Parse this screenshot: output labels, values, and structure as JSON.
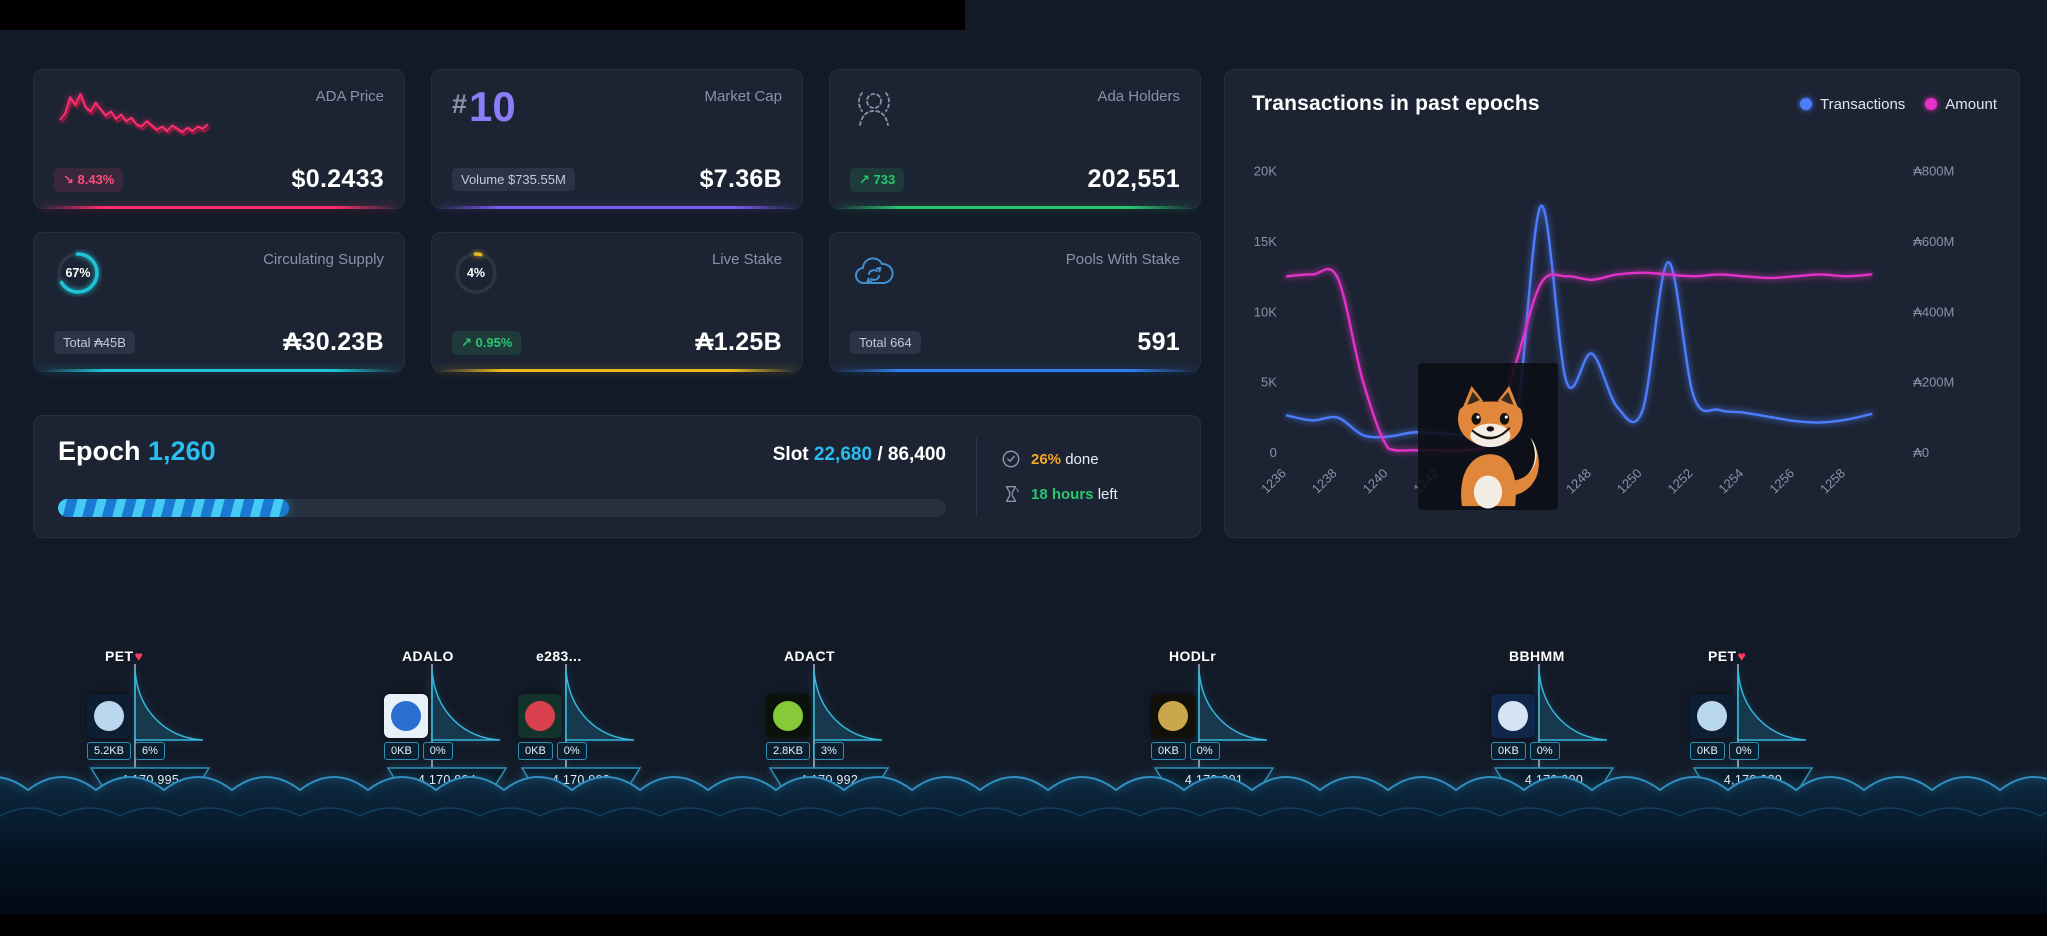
{
  "stats": {
    "ada_price": {
      "label": "ADA Price",
      "value": "$0.2433",
      "change": "↘ 8.43%",
      "accent": "#ff2d6d",
      "sparkline": [
        34,
        40,
        55,
        48,
        58,
        46,
        42,
        50,
        44,
        38,
        42,
        35,
        39,
        33,
        36,
        30,
        28,
        33,
        29,
        25,
        28,
        24,
        29,
        26,
        23,
        27,
        24,
        28,
        26,
        30
      ]
    },
    "market_cap": {
      "label": "Market Cap",
      "rank_symbol": "#",
      "rank": "10",
      "badge": "Volume $735.55M",
      "value": "$7.36B",
      "accent": "#7b5bf5"
    },
    "holders": {
      "label": "Ada Holders",
      "badge": "↗ 733",
      "value": "202,551",
      "accent": "#28c76f"
    },
    "supply": {
      "label": "Circulating Supply",
      "ring_pct": 67,
      "ring_label": "67%",
      "badge": "Total ₳45B",
      "value": "₳30.23B",
      "accent": "#1fc2d6"
    },
    "live_stake": {
      "label": "Live Stake",
      "ring_pct": 4,
      "ring_label": "4%",
      "badge": "↗ 0.95%",
      "value": "₳1.25B",
      "accent": "#e8b822"
    },
    "pools": {
      "label": "Pools With Stake",
      "badge": "Total 664",
      "value": "591",
      "accent": "#2f80ed"
    }
  },
  "epoch": {
    "title": "Epoch",
    "number": "1,260",
    "slot_label": "Slot",
    "slot_current": "22,680",
    "slot_total": "/ 86,400",
    "progress_pct": 26,
    "done_value": "26%",
    "done_label": "done",
    "left_value": "18 hours",
    "left_label": "left"
  },
  "chart": {
    "title": "Transactions in past epochs",
    "legend": [
      {
        "label": "Transactions",
        "color": "#4d7dfe"
      },
      {
        "label": "Amount",
        "color": "#e332c8"
      }
    ]
  },
  "chart_data": {
    "type": "line",
    "title": "Transactions in past epochs",
    "x": [
      1236,
      1237,
      1238,
      1239,
      1240,
      1241,
      1242,
      1243,
      1244,
      1245,
      1246,
      1247,
      1248,
      1249,
      1250,
      1251,
      1252,
      1253,
      1254,
      1255,
      1256,
      1257,
      1258,
      1259
    ],
    "x_tick_step": 2,
    "series": [
      {
        "name": "Transactions",
        "axis": "left",
        "color": "#4d7dfe",
        "values": [
          2600,
          2250,
          2450,
          1200,
          1100,
          1400,
          1350,
          1200,
          1300,
          2000,
          17500,
          5000,
          7000,
          3200,
          3000,
          13500,
          4000,
          3000,
          2800,
          2500,
          2200,
          2100,
          2300,
          2700
        ]
      },
      {
        "name": "Amount",
        "axis": "right",
        "color": "#e332c8",
        "unit": "₳M",
        "values": [
          500,
          505,
          495,
          200,
          10,
          5,
          5,
          5,
          30,
          250,
          480,
          500,
          490,
          505,
          510,
          505,
          500,
          505,
          500,
          495,
          500,
          505,
          500,
          505
        ]
      }
    ],
    "y_left": {
      "min": 0,
      "max": 20000,
      "ticks": [
        "0",
        "5K",
        "10K",
        "15K",
        "20K"
      ]
    },
    "y_right": {
      "min": 0,
      "max": 800,
      "ticks": [
        "₳0",
        "₳200M",
        "₳400M",
        "₳600M",
        "₳800M"
      ]
    },
    "grid": false,
    "legend_position": "top-right"
  },
  "boats": [
    {
      "ticker": "PET",
      "heart": true,
      "size": "5.2KB",
      "pct": "6%",
      "block": "4,170,995",
      "avatar": {
        "bg": "#0d1e33",
        "fg": "#b9d7ee"
      }
    },
    {
      "ticker": "ADALO",
      "heart": false,
      "size": "0KB",
      "pct": "0%",
      "block": "4,170,994",
      "avatar": {
        "bg": "#e9f1f8",
        "fg": "#2a6fd0"
      }
    },
    {
      "ticker": "e283...",
      "heart": false,
      "size": "0KB",
      "pct": "0%",
      "block": "4,170,993",
      "avatar": {
        "bg": "#14332c",
        "fg": "#d8404e"
      }
    },
    {
      "ticker": "ADACT",
      "heart": false,
      "size": "2.8KB",
      "pct": "3%",
      "block": "4,170,992",
      "avatar": {
        "bg": "#0b120b",
        "fg": "#86ca3a"
      }
    },
    {
      "ticker": "HODLr",
      "heart": false,
      "size": "0KB",
      "pct": "0%",
      "block": "4,170,991",
      "avatar": {
        "bg": "#111009",
        "fg": "#c9a84c"
      }
    },
    {
      "ticker": "BBHMM",
      "heart": false,
      "size": "0KB",
      "pct": "0%",
      "block": "4,170,990",
      "avatar": {
        "bg": "#10264a",
        "fg": "#d5e4f2"
      }
    },
    {
      "ticker": "PET",
      "heart": true,
      "size": "0KB",
      "pct": "0%",
      "block": "4,170,989",
      "avatar": {
        "bg": "#0d1e33",
        "fg": "#b9d7ee"
      }
    }
  ],
  "icons": {
    "holders": "person-outline-icon",
    "pools": "stake-cloud-icon",
    "done": "clock-check-icon",
    "left": "hourglass-icon"
  }
}
